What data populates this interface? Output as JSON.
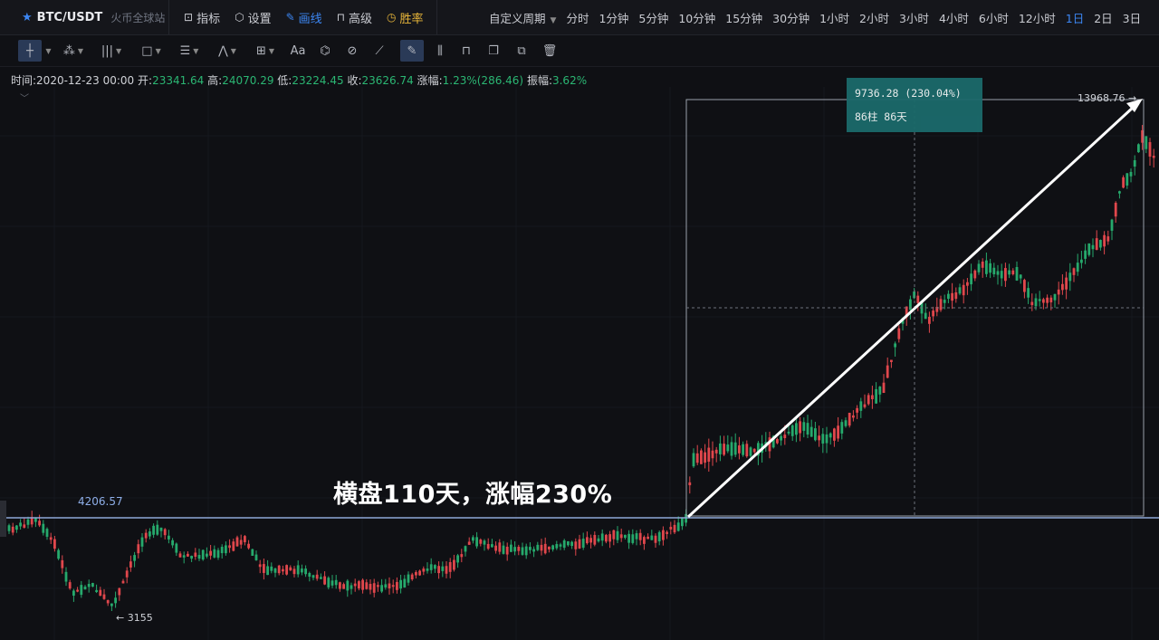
{
  "topbar": {
    "symbol": "BTC/USDT",
    "exchange": "火币全球站",
    "buttons": [
      {
        "label": "指标",
        "icon": "indicator-icon"
      },
      {
        "label": "设置",
        "icon": "settings-icon"
      },
      {
        "label": "画线",
        "icon": "pencil-icon",
        "active": true
      },
      {
        "label": "高级",
        "icon": "advanced-icon"
      },
      {
        "label": "胜率",
        "icon": "winrate-icon"
      }
    ],
    "custom_period": "自定义周期",
    "periods": [
      "分时",
      "1分钟",
      "5分钟",
      "10分钟",
      "15分钟",
      "30分钟",
      "1小时",
      "2小时",
      "3小时",
      "4小时",
      "6小时",
      "12小时",
      "1日",
      "2日",
      "3日"
    ],
    "active_period": "1日"
  },
  "info": {
    "time_label": "时间:",
    "time_value": "2020-12-23 00:00",
    "open_label": "开:",
    "open_value": "23341.64",
    "high_label": "高:",
    "high_value": "24070.29",
    "low_label": "低:",
    "low_value": "23224.45",
    "close_label": "收:",
    "close_value": "23626.74",
    "change_label": "涨幅:",
    "change_value": "1.23%(286.46)",
    "amp_label": "振幅:",
    "amp_value": "3.62%"
  },
  "chart": {
    "annotation": "横盘110天，涨幅230%",
    "hline_label": "4206.57",
    "top_label": "13968.76",
    "low_label": "3155",
    "measure_line1": "9736.28 (230.04%)",
    "measure_line2": "86柱 86天",
    "colors": {
      "up": "#26a96c",
      "down": "#e0474c",
      "bg": "#0f1014",
      "line": "#8ea7d8"
    }
  }
}
